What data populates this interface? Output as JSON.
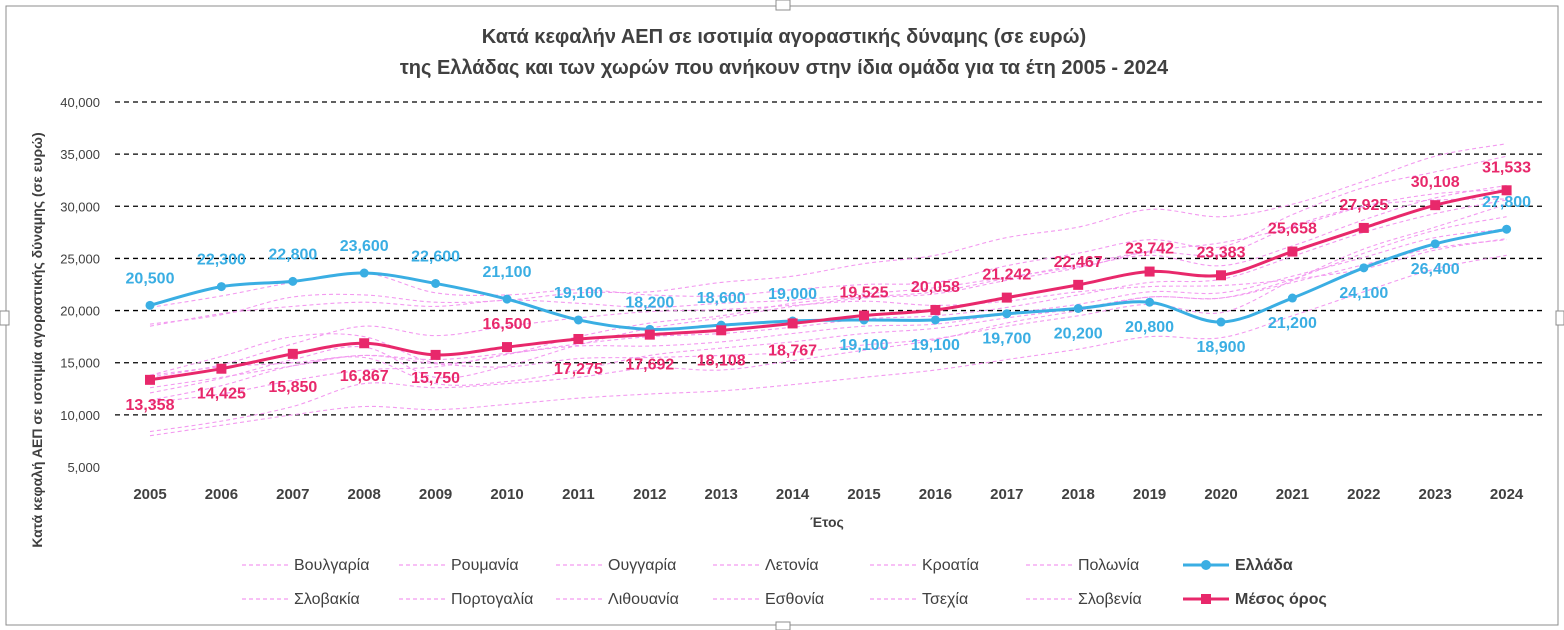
{
  "chart_data": {
    "type": "line",
    "title_line1": "Κατά κεφαλήν ΑΕΠ σε ισοτιμία αγοραστικής δύναμης (σε ευρώ)",
    "title_line2": "της Ελλάδας και των χωρών που ανήκουν στην ίδια ομάδα για τα έτη 2005 - 2024",
    "xlabel": "Έτος",
    "ylabel": "Κατά κεφαλή ΑΕΠ σε ισοτιμία αγοραστικής δύναμης (σε ευρώ)",
    "ylim": [
      5000,
      40000
    ],
    "yticks": [
      "5,000",
      "10,000",
      "15,000",
      "20,000",
      "25,000",
      "30,000",
      "35,000",
      "40,000"
    ],
    "ytick_values": [
      5000,
      10000,
      15000,
      20000,
      25000,
      30000,
      35000,
      40000
    ],
    "categories": [
      "2005",
      "2006",
      "2007",
      "2008",
      "2009",
      "2010",
      "2011",
      "2012",
      "2013",
      "2014",
      "2015",
      "2016",
      "2017",
      "2018",
      "2019",
      "2020",
      "2021",
      "2022",
      "2023",
      "2024"
    ],
    "background_series": [
      {
        "name": "Βουλγαρία",
        "values": [
          8000,
          9000,
          10000,
          10800,
          10500,
          11000,
          11600,
          12000,
          12300,
          12900,
          13600,
          14300,
          15300,
          16300,
          17500,
          17400,
          19500,
          21800,
          24000,
          25300
        ]
      },
      {
        "name": "Ρουμανία",
        "values": [
          8400,
          9400,
          10800,
          13000,
          12600,
          13000,
          13600,
          14500,
          14300,
          15200,
          16200,
          17200,
          18800,
          20000,
          21300,
          21200,
          23000,
          25500,
          27700,
          29000
        ]
      },
      {
        "name": "Ουγγαρία",
        "values": [
          13800,
          14600,
          15000,
          15700,
          15300,
          15900,
          16600,
          16600,
          17000,
          17800,
          18500,
          18700,
          19700,
          20600,
          21800,
          21700,
          23300,
          25100,
          27000,
          27800
        ]
      },
      {
        "name": "Λετονία",
        "values": [
          11400,
          12800,
          14700,
          15500,
          13000,
          13200,
          14300,
          15700,
          16400,
          17000,
          17800,
          18300,
          19300,
          20200,
          21300,
          21200,
          22700,
          24400,
          26000,
          26800
        ]
      },
      {
        "name": "Κροατία",
        "values": [
          12600,
          13600,
          14700,
          15700,
          14900,
          14600,
          15400,
          15500,
          15700,
          16000,
          16700,
          17300,
          18500,
          19500,
          20600,
          19800,
          22900,
          25900,
          28000,
          30200
        ]
      },
      {
        "name": "Πολωνία",
        "values": [
          11200,
          12000,
          13300,
          14300,
          14600,
          15800,
          16800,
          17500,
          17800,
          18400,
          19200,
          19500,
          20300,
          21500,
          22700,
          23000,
          25200,
          27500,
          29300,
          30600
        ]
      },
      {
        "name": "Σλοβακία",
        "values": [
          13600,
          14800,
          16800,
          18500,
          17600,
          18500,
          19300,
          19900,
          20100,
          20500,
          20900,
          20500,
          20900,
          21800,
          22300,
          22400,
          23000,
          24000,
          25800,
          26900
        ]
      },
      {
        "name": "Πορτογαλία",
        "values": [
          18500,
          19700,
          20400,
          20800,
          20400,
          21000,
          20700,
          20300,
          20700,
          21000,
          21600,
          22200,
          23200,
          24200,
          25300,
          24300,
          26200,
          28700,
          30800,
          32000
        ]
      },
      {
        "name": "Λιθουανία",
        "values": [
          12100,
          13500,
          15300,
          16500,
          13600,
          14700,
          16700,
          18300,
          19300,
          20400,
          21200,
          21600,
          22900,
          24100,
          25700,
          26500,
          28000,
          30000,
          31200,
          31600
        ]
      },
      {
        "name": "Εσθονία",
        "values": [
          13800,
          15600,
          17500,
          17500,
          15000,
          15800,
          17500,
          18800,
          19500,
          20700,
          21300,
          21800,
          23100,
          24400,
          25600,
          25400,
          28100,
          30000,
          30600,
          30700
        ]
      },
      {
        "name": "Τσεχία",
        "values": [
          18700,
          19600,
          21300,
          21500,
          20800,
          21000,
          21700,
          21800,
          22700,
          23300,
          24500,
          25300,
          27000,
          28000,
          29700,
          29000,
          30200,
          32400,
          34800,
          36000
        ]
      },
      {
        "name": "Σλοβενία",
        "values": [
          20300,
          21400,
          22700,
          23600,
          21700,
          21500,
          22000,
          21500,
          21400,
          22000,
          22500,
          22700,
          24300,
          25500,
          26800,
          26100,
          29200,
          31800,
          33300,
          34800
        ]
      }
    ],
    "series": [
      {
        "name": "Ελλάδα",
        "color": "#3aaee3",
        "values": [
          20500,
          22300,
          22800,
          23600,
          22600,
          21100,
          19100,
          18200,
          18600,
          19000,
          19100,
          19100,
          19700,
          20200,
          20800,
          18900,
          21200,
          24100,
          26400,
          27800
        ],
        "labels": [
          "20,500",
          "22,300",
          "22,800",
          "23,600",
          "22,600",
          "21,100",
          "19,100",
          "18,200",
          "18,600",
          "19,000",
          "19,100",
          "19,100",
          "19,700",
          "20,200",
          "20,800",
          "18,900",
          "21,200",
          "24,100",
          "26,400",
          "27,800"
        ]
      },
      {
        "name": "Μέσος όρος",
        "color": "#e8286b",
        "values": [
          13358,
          14425,
          15850,
          16867,
          15750,
          16500,
          17275,
          17692,
          18108,
          18767,
          19525,
          20058,
          21242,
          22467,
          23742,
          23383,
          25658,
          27925,
          30108,
          31533
        ],
        "labels": [
          "13,358",
          "14,425",
          "15,850",
          "16,867",
          "15,750",
          "16,500",
          "17,275",
          "17,692",
          "18,108",
          "18,767",
          "19,525",
          "20,058",
          "21,242",
          "22,467",
          "23,742",
          "23,383",
          "25,658",
          "27,925",
          "30,108",
          "31,533"
        ]
      }
    ],
    "legend": {
      "row1": [
        "Βουλγαρία",
        "Ρουμανία",
        "Ουγγαρία",
        "Λετονία",
        "Κροατία",
        "Πολωνία",
        "Ελλάδα"
      ],
      "row2": [
        "Σλοβακία",
        "Πορτογαλία",
        "Λιθουανία",
        "Εσθονία",
        "Τσεχία",
        "Σλοβενία",
        "Μέσος όρος"
      ],
      "placement": "bottom"
    },
    "colors": {
      "background_line": "#f39af0",
      "greece": "#3aaee3",
      "average": "#e8286b",
      "grid": "#000000",
      "text": "#404040"
    }
  }
}
